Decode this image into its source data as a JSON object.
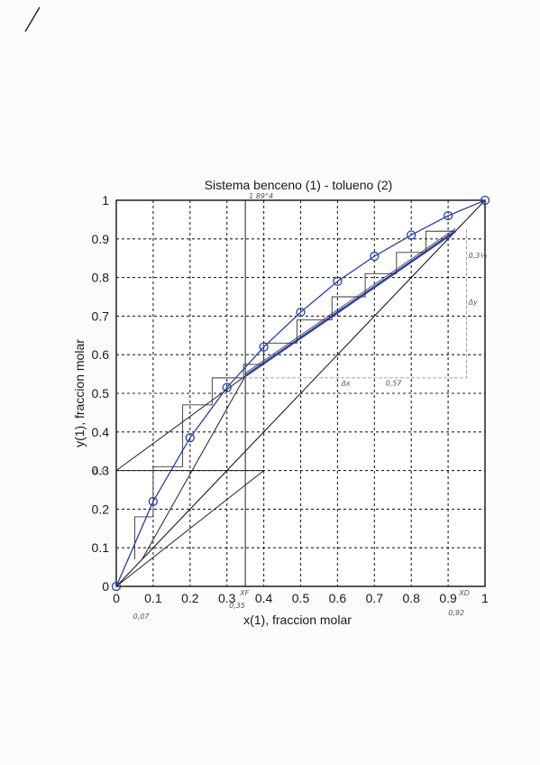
{
  "chart_data": {
    "type": "line",
    "title": "Sistema benceno (1) - tolueno (2)",
    "xlabel": "x(1), fraccion molar",
    "ylabel": "y(1), fraccion molar",
    "xlim": [
      0,
      1
    ],
    "ylim": [
      0,
      1
    ],
    "grid": true,
    "x_ticks": [
      "0",
      "0.1",
      "0.2",
      "0.3",
      "0.4",
      "0.5",
      "0.6",
      "0.7",
      "0.8",
      "0.9",
      "1"
    ],
    "y_ticks": [
      "0",
      "0.1",
      "0.2",
      "0.3",
      "0.4",
      "0.5",
      "0.6",
      "0.7",
      "0.8",
      "0.9",
      "1"
    ],
    "series": [
      {
        "color": "#2b3fa8",
        "marker": "circle",
        "x": [
          0,
          0.1,
          0.2,
          0.3,
          0.4,
          0.5,
          0.6,
          0.7,
          0.8,
          0.9,
          1.0
        ],
        "y": [
          0,
          0.22,
          0.385,
          0.515,
          0.62,
          0.71,
          0.79,
          0.855,
          0.91,
          0.96,
          1.0
        ]
      },
      {
        "color": "#1a1a1a",
        "x": [
          0,
          1
        ],
        "y": [
          0,
          1
        ]
      }
    ],
    "operating_lines": {
      "rectifying": {
        "x": [
          0.35,
          0.92
        ],
        "y": [
          0.545,
          0.92
        ]
      },
      "stripping": {
        "x": [
          0.07,
          0.35
        ],
        "y": [
          0.07,
          0.545
        ]
      },
      "rectifying_intercept_line": {
        "x": [
          0,
          0.35
        ],
        "y": [
          0.3,
          0.545
        ]
      },
      "q_line": {
        "x": [
          0.35,
          0.35
        ],
        "y": [
          0,
          1
        ]
      }
    },
    "stages": {
      "points": [
        [
          0.92,
          0.92
        ],
        [
          0.84,
          0.92
        ],
        [
          0.84,
          0.865
        ],
        [
          0.76,
          0.865
        ],
        [
          0.76,
          0.81
        ],
        [
          0.675,
          0.81
        ],
        [
          0.675,
          0.75
        ],
        [
          0.585,
          0.75
        ],
        [
          0.585,
          0.69
        ],
        [
          0.49,
          0.69
        ],
        [
          0.49,
          0.63
        ],
        [
          0.4,
          0.63
        ],
        [
          0.4,
          0.575
        ],
        [
          0.345,
          0.575
        ],
        [
          0.345,
          0.54
        ],
        [
          0.26,
          0.54
        ],
        [
          0.26,
          0.47
        ],
        [
          0.18,
          0.47
        ],
        [
          0.18,
          0.31
        ],
        [
          0.1,
          0.31
        ],
        [
          0.1,
          0.18
        ],
        [
          0.05,
          0.18
        ],
        [
          0.05,
          0.07
        ]
      ]
    }
  },
  "annotations": {
    "xd_label": "XD",
    "xd_value": "0,92",
    "xf_label": "XF",
    "xf_value": "0,35",
    "xw_value": "0,07",
    "dx_label": "Δx",
    "dy_label": "Δy",
    "slope_note": "0,3½",
    "dx_value": "0,57",
    "top_note": "1 89°4",
    "y_intercept": "0.3"
  }
}
